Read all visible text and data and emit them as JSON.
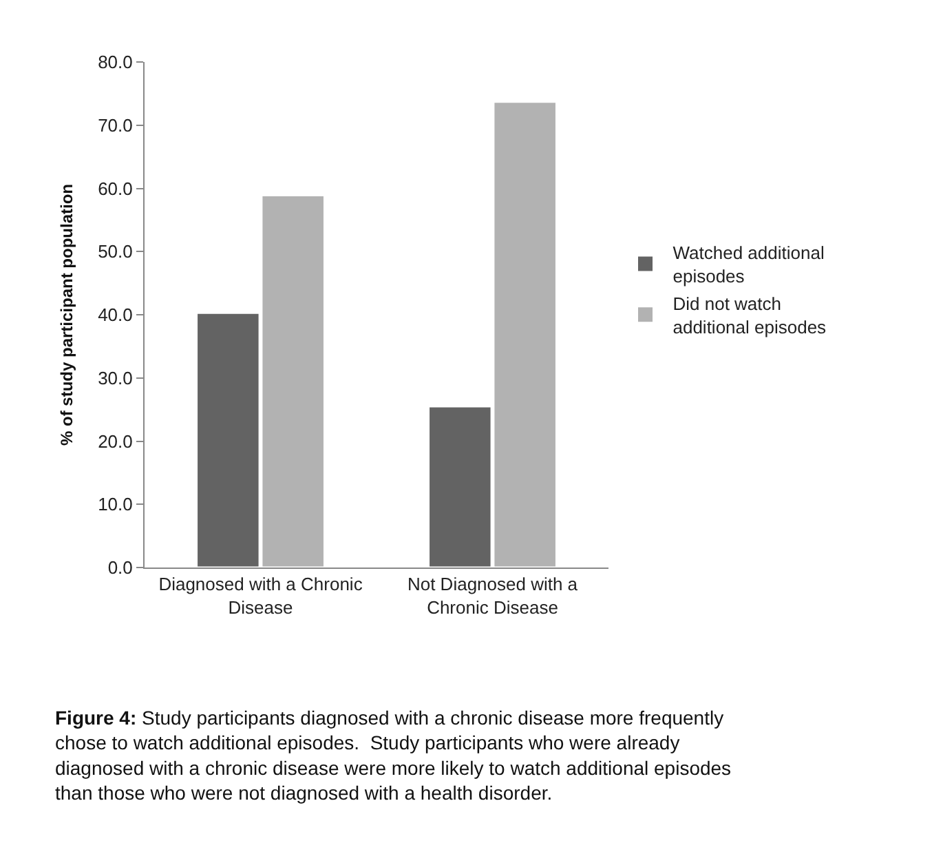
{
  "chart_data": {
    "type": "bar",
    "ylabel": "% of study participant population",
    "categories": [
      "Diagnosed with a Chronic Disease",
      "Not Diagnosed with a Chronic Disease"
    ],
    "series": [
      {
        "name": "Watched additional episodes",
        "color": "#636363",
        "values": [
          40.3,
          25.5
        ]
      },
      {
        "name": "Did not watch additional episodes",
        "color": "#b2b2b2",
        "values": [
          58.9,
          73.7
        ]
      }
    ],
    "ylim": [
      0,
      80
    ],
    "yticks": [
      {
        "value": 0,
        "label": "0.0"
      },
      {
        "value": 10,
        "label": "10.0"
      },
      {
        "value": 20,
        "label": "20.0"
      },
      {
        "value": 30,
        "label": "30.0"
      },
      {
        "value": 40,
        "label": "40.0"
      },
      {
        "value": 50,
        "label": "50.0"
      },
      {
        "value": 60,
        "label": "60.0"
      },
      {
        "value": 70,
        "label": "70.0"
      },
      {
        "value": 80,
        "label": "80.0"
      }
    ],
    "legend": "right",
    "annotations": [
      "Figure 4: Study participants diagnosed with a chronic disease more frequently chose to watch additional episodes.  Study participants who were already diagnosed with a chronic disease were more likely to watch additional episodes than those who were not diagnosed with a health disorder."
    ]
  }
}
